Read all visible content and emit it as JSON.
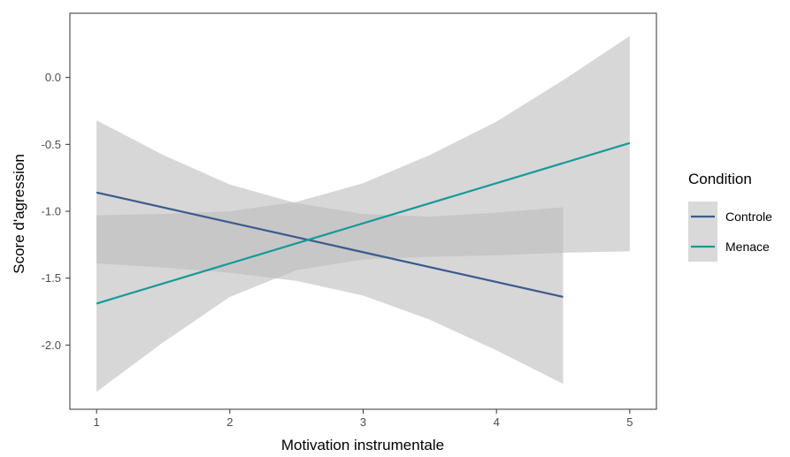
{
  "chart_data": {
    "type": "line",
    "title": "",
    "xlabel": "Motivation instrumentale",
    "ylabel": "Score d'agression",
    "xlim": [
      0.8,
      5.2
    ],
    "ylim": [
      -2.48,
      0.48
    ],
    "x_ticks": [
      1,
      2,
      3,
      4,
      5
    ],
    "y_ticks": [
      -2.0,
      -1.5,
      -1.0,
      -0.5,
      0.0
    ],
    "x_tick_labels": [
      "1",
      "2",
      "3",
      "4",
      "5"
    ],
    "y_tick_labels": [
      "-2.0",
      "-1.5",
      "-1.0",
      "-0.5",
      "0.0"
    ],
    "grid": false,
    "legend_position": "right",
    "legend_title": "Condition",
    "series": [
      {
        "name": "Controle",
        "color": "#3b5b8c",
        "x": [
          1,
          4.5
        ],
        "y": [
          -0.86,
          -1.64
        ],
        "ci": {
          "x": [
            1,
            1.5,
            2,
            2.5,
            3,
            3.5,
            4,
            4.5
          ],
          "lower": [
            -1.39,
            -1.42,
            -1.46,
            -1.52,
            -1.63,
            -1.81,
            -2.04,
            -2.29
          ],
          "upper": [
            -0.32,
            -0.58,
            -0.8,
            -0.94,
            -1.02,
            -1.04,
            -1.01,
            -0.97
          ]
        }
      },
      {
        "name": "Menace",
        "color": "#179a98",
        "x": [
          1,
          5
        ],
        "y": [
          -1.69,
          -0.49
        ],
        "ci": {
          "x": [
            1,
            1.5,
            2,
            2.5,
            3,
            3.5,
            4,
            4.5,
            5
          ],
          "lower": [
            -2.35,
            -1.98,
            -1.64,
            -1.44,
            -1.36,
            -1.34,
            -1.33,
            -1.31,
            -1.3
          ],
          "upper": [
            -1.03,
            -1.02,
            -1.0,
            -0.93,
            -0.79,
            -0.58,
            -0.33,
            -0.02,
            0.31
          ]
        }
      }
    ],
    "ribbon_color": "#bdbdbd"
  }
}
